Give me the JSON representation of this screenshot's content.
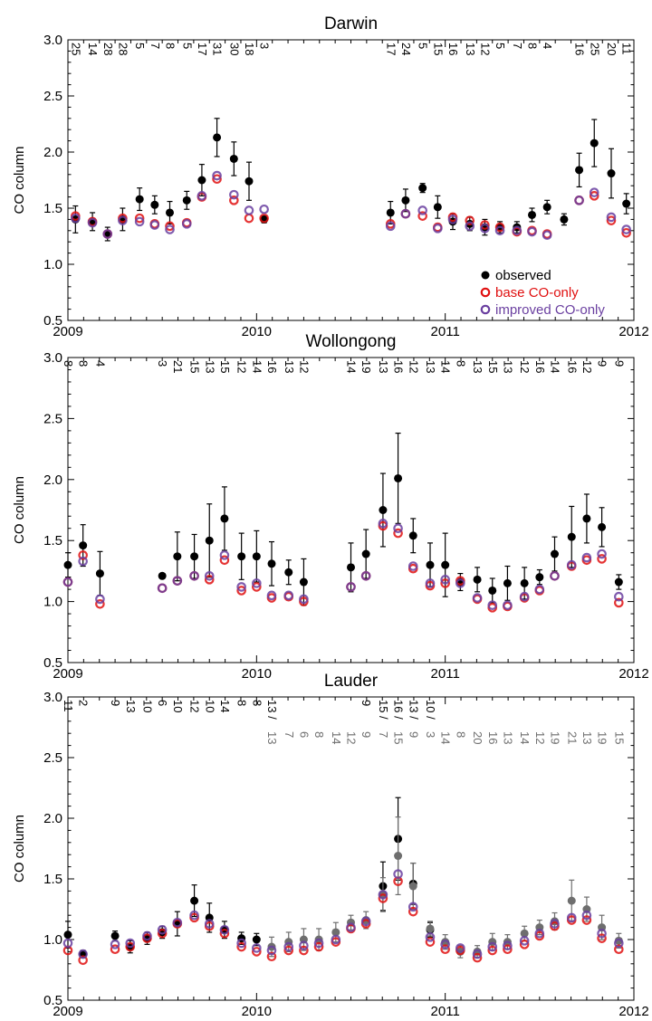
{
  "colors": {
    "observed": "#000000",
    "observed_alt": "#6e6e6e",
    "base": "#e01010",
    "improved": "#6a3fa0",
    "axis": "#000000"
  },
  "legend": {
    "position": "bottom-right of Darwin panel",
    "items": [
      "observed",
      "base CO-only",
      "improved CO-only"
    ]
  },
  "chart_data": [
    {
      "type": "scatter",
      "title": "Darwin",
      "ylabel": "CO column",
      "xlabel": "",
      "xlim": [
        2009,
        2012
      ],
      "ylim": [
        0.5,
        3.0
      ],
      "x_ticks": [
        "2009",
        "2010",
        "2011",
        "2012"
      ],
      "y_ticks": [
        "0.5",
        "1.0",
        "1.5",
        "2.0",
        "2.5",
        "3.0"
      ],
      "x": [
        2009.04,
        2009.13,
        2009.21,
        2009.29,
        2009.38,
        2009.46,
        2009.54,
        2009.63,
        2009.71,
        2009.79,
        2009.88,
        2009.96,
        2010.04,
        2010.71,
        2010.79,
        2010.88,
        2010.96,
        2011.04,
        2011.13,
        2011.21,
        2011.29,
        2011.38,
        2011.46,
        2011.54,
        2011.63,
        2011.71,
        2011.79,
        2011.88,
        2011.96
      ],
      "counts": [
        "25",
        "14",
        "28",
        "28",
        "5",
        "7",
        "8",
        "5",
        "17",
        "31",
        "30",
        "18",
        "3",
        "17",
        "24",
        "5",
        "15",
        "16",
        "13",
        "12",
        "5",
        "7",
        "8",
        "4",
        "",
        "16",
        "25",
        "20",
        "11"
      ],
      "series": [
        {
          "name": "observed",
          "values": [
            1.4,
            1.38,
            1.27,
            1.4,
            1.58,
            1.53,
            1.46,
            1.57,
            1.75,
            2.13,
            1.94,
            1.74,
            1.4,
            1.46,
            1.57,
            1.68,
            1.51,
            1.38,
            1.36,
            1.33,
            1.33,
            1.33,
            1.44,
            1.51,
            1.4,
            1.84,
            2.08,
            1.81,
            1.54
          ],
          "err": [
            0.12,
            0.08,
            0.06,
            0.1,
            0.1,
            0.08,
            0.1,
            0.08,
            0.14,
            0.17,
            0.15,
            0.17,
            0.03,
            0.1,
            0.1,
            0.04,
            0.1,
            0.07,
            0.06,
            0.07,
            0.05,
            0.05,
            0.06,
            0.06,
            0.05,
            0.15,
            0.21,
            0.22,
            0.09
          ]
        },
        {
          "name": "base CO-only",
          "values": [
            1.43,
            1.38,
            1.27,
            1.41,
            1.41,
            1.36,
            1.34,
            1.37,
            1.6,
            1.76,
            1.57,
            1.41,
            1.41,
            1.36,
            1.45,
            1.43,
            1.33,
            1.42,
            1.39,
            1.35,
            1.33,
            1.29,
            1.3,
            1.27,
            null,
            1.57,
            1.61,
            1.39,
            1.28
          ]
        },
        {
          "name": "improved CO-only",
          "values": [
            1.41,
            1.37,
            1.27,
            1.39,
            1.38,
            1.35,
            1.31,
            1.36,
            1.61,
            1.79,
            1.62,
            1.48,
            1.49,
            1.34,
            1.45,
            1.48,
            1.32,
            1.4,
            1.34,
            1.32,
            1.3,
            1.3,
            1.29,
            1.26,
            null,
            1.57,
            1.64,
            1.42,
            1.31
          ]
        }
      ]
    },
    {
      "type": "scatter",
      "title": "Wollongong",
      "ylabel": "CO column",
      "xlabel": "",
      "xlim": [
        2009,
        2012
      ],
      "ylim": [
        0.5,
        3.0
      ],
      "x_ticks": [
        "2009",
        "2010",
        "2011",
        "2012"
      ],
      "y_ticks": [
        "0.5",
        "1.0",
        "1.5",
        "2.0",
        "2.5",
        "3.0"
      ],
      "x": [
        2009.0,
        2009.08,
        2009.17,
        2009.5,
        2009.58,
        2009.67,
        2009.75,
        2009.83,
        2009.92,
        2010.0,
        2010.08,
        2010.17,
        2010.25,
        2010.5,
        2010.58,
        2010.67,
        2010.75,
        2010.83,
        2010.92,
        2011.0,
        2011.08,
        2011.17,
        2011.25,
        2011.33,
        2011.42,
        2011.5,
        2011.58,
        2011.67,
        2011.75,
        2011.83,
        2011.92
      ],
      "counts": [
        "8",
        "8",
        "4",
        "3",
        "21",
        "15",
        "13",
        "15",
        "12",
        "14",
        "16",
        "13",
        "12",
        "14",
        "19",
        "13",
        "16",
        "12",
        "13",
        "14",
        "8",
        "13",
        "15",
        "13",
        "12",
        "16",
        "14",
        "16",
        "12",
        "9",
        "9"
      ],
      "series": [
        {
          "name": "observed",
          "values": [
            1.3,
            1.46,
            1.23,
            1.21,
            1.37,
            1.37,
            1.5,
            1.68,
            1.37,
            1.37,
            1.31,
            1.24,
            1.16,
            1.28,
            1.39,
            1.75,
            2.01,
            1.54,
            1.3,
            1.3,
            1.16,
            1.18,
            1.09,
            1.15,
            1.15,
            1.2,
            1.39,
            1.53,
            1.68,
            1.61,
            1.16
          ],
          "err": [
            0.1,
            0.17,
            0.18,
            0.02,
            0.2,
            0.18,
            0.3,
            0.26,
            0.19,
            0.21,
            0.18,
            0.1,
            0.19,
            0.2,
            0.2,
            0.3,
            0.37,
            0.14,
            0.18,
            0.26,
            0.07,
            0.1,
            0.1,
            0.14,
            0.13,
            0.06,
            0.14,
            0.25,
            0.2,
            0.16,
            0.06
          ]
        },
        {
          "name": "base CO-only",
          "values": [
            1.16,
            1.38,
            0.98,
            1.11,
            1.17,
            1.21,
            1.18,
            1.34,
            1.09,
            1.12,
            1.03,
            1.04,
            1.0,
            1.12,
            1.21,
            1.62,
            1.56,
            1.27,
            1.13,
            1.15,
            1.17,
            1.02,
            0.95,
            0.96,
            1.03,
            1.09,
            1.21,
            1.29,
            1.34,
            1.35,
            0.99
          ]
        },
        {
          "name": "improved CO-only",
          "values": [
            1.16,
            1.33,
            1.02,
            1.11,
            1.17,
            1.21,
            1.21,
            1.38,
            1.12,
            1.15,
            1.05,
            1.05,
            1.02,
            1.12,
            1.21,
            1.64,
            1.6,
            1.29,
            1.15,
            1.18,
            1.15,
            1.03,
            0.97,
            0.97,
            1.04,
            1.1,
            1.21,
            1.3,
            1.36,
            1.39,
            1.04
          ]
        }
      ]
    },
    {
      "type": "scatter",
      "title": "Lauder",
      "ylabel": "CO column",
      "xlabel": "",
      "xlim": [
        2009,
        2012
      ],
      "ylim": [
        0.5,
        3.0
      ],
      "x_ticks": [
        "2009",
        "2010",
        "2011",
        "2012"
      ],
      "y_ticks": [
        "0.5",
        "1.0",
        "1.5",
        "2.0",
        "2.5",
        "3.0"
      ],
      "x": [
        2009.0,
        2009.08,
        2009.25,
        2009.33,
        2009.42,
        2009.5,
        2009.58,
        2009.67,
        2009.75,
        2009.83,
        2009.92,
        2010.0,
        2010.08,
        2010.17,
        2010.25,
        2010.33,
        2010.42,
        2010.5,
        2010.58,
        2010.67,
        2010.75,
        2010.83,
        2010.92,
        2011.0,
        2011.08,
        2011.17,
        2011.25,
        2011.33,
        2011.42,
        2011.5,
        2011.58,
        2011.67,
        2011.75,
        2011.83,
        2011.92
      ],
      "counts_black": [
        "11",
        "2",
        "9",
        "13",
        "10",
        "6",
        "10",
        "12",
        "10",
        "14",
        "8",
        "8",
        "13 /",
        "",
        "",
        "",
        "",
        "",
        "9",
        "15 /",
        "16 /",
        "13 /",
        "10 /",
        "",
        "",
        "",
        "",
        "",
        "",
        "",
        "",
        "",
        "",
        "",
        ""
      ],
      "counts_gray": [
        "",
        "",
        "",
        "",
        "",
        "",
        "",
        "",
        "",
        "",
        "",
        "",
        "13",
        "7",
        "6",
        "8",
        "14",
        "12",
        "9",
        "7",
        "15",
        "9",
        "3",
        "14",
        "8",
        "20",
        "16",
        "13",
        "14",
        "12",
        "19",
        "21",
        "13",
        "19",
        "15"
      ],
      "series": [
        {
          "name": "observed",
          "values": [
            1.04,
            0.88,
            1.03,
            0.94,
            1.01,
            1.06,
            1.13,
            1.32,
            1.18,
            1.08,
            1.01,
            1.0,
            null,
            null,
            null,
            null,
            null,
            null,
            null,
            1.44,
            1.83,
            1.46,
            1.08,
            null,
            null,
            null,
            null,
            null,
            null,
            null,
            null,
            null,
            null,
            null,
            null
          ],
          "err": [
            0.11,
            0.03,
            0.04,
            0.05,
            0.05,
            0.05,
            0.1,
            0.13,
            0.12,
            0.07,
            0.05,
            0.05,
            null,
            null,
            null,
            null,
            null,
            null,
            null,
            0.2,
            0.34,
            0.17,
            0.06,
            null,
            null,
            null,
            null,
            null,
            null,
            null,
            null,
            null,
            null,
            null,
            null
          ]
        },
        {
          "name": "",
          "values": [
            null,
            null,
            null,
            null,
            null,
            null,
            null,
            null,
            null,
            null,
            null,
            null,
            0.94,
            0.98,
            1.0,
            1.0,
            1.06,
            1.14,
            1.16,
            1.37,
            1.69,
            1.44,
            1.09,
            0.98,
            0.9,
            0.9,
            0.98,
            0.98,
            1.05,
            1.1,
            1.15,
            1.32,
            1.25,
            1.1,
            0.99
          ],
          "err": [
            null,
            null,
            null,
            null,
            null,
            null,
            null,
            null,
            null,
            null,
            null,
            null,
            0.08,
            0.08,
            0.09,
            0.09,
            0.08,
            0.06,
            0.07,
            0.14,
            0.32,
            0.19,
            0.06,
            0.06,
            0.05,
            0.05,
            0.07,
            0.06,
            0.06,
            0.06,
            0.07,
            0.17,
            0.1,
            0.1,
            0.06
          ]
        },
        {
          "name": "base CO-only",
          "values": [
            0.91,
            0.83,
            0.92,
            0.94,
            1.01,
            1.05,
            1.13,
            1.18,
            1.11,
            1.05,
            0.94,
            0.9,
            0.86,
            0.91,
            0.91,
            0.94,
            0.98,
            1.09,
            1.13,
            1.34,
            1.48,
            1.23,
            0.98,
            0.92,
            0.91,
            0.85,
            0.91,
            0.92,
            0.96,
            1.03,
            1.11,
            1.16,
            1.16,
            1.01,
            0.92
          ]
        },
        {
          "name": "improved CO-only",
          "values": [
            0.97,
            0.88,
            0.96,
            0.97,
            1.03,
            1.08,
            1.14,
            1.2,
            1.13,
            1.08,
            0.97,
            0.93,
            0.91,
            0.94,
            0.95,
            0.97,
            1.0,
            1.1,
            1.15,
            1.37,
            1.54,
            1.27,
            1.02,
            0.96,
            0.93,
            0.88,
            0.94,
            0.95,
            0.99,
            1.05,
            1.13,
            1.18,
            1.2,
            1.05,
            0.97
          ]
        }
      ]
    }
  ]
}
